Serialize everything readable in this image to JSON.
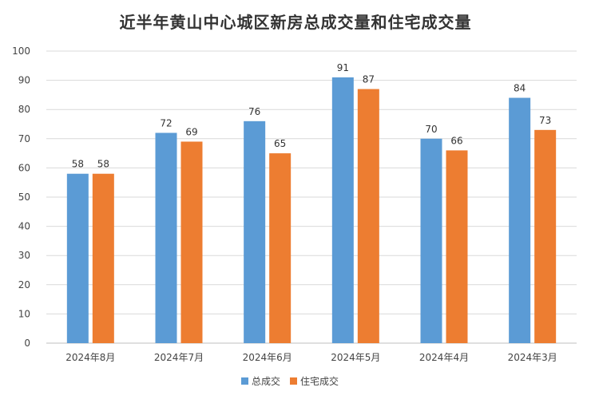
{
  "chart_data": {
    "type": "bar",
    "title": "近半年黄山中心城区新房总成交量和住宅成交量",
    "categories": [
      "2024年8月",
      "2024年7月",
      "2024年6月",
      "2024年5月",
      "2024年4月",
      "2024年3月"
    ],
    "series": [
      {
        "name": "总成交",
        "color": "#5b9bd5",
        "values": [
          58,
          72,
          76,
          91,
          70,
          84
        ]
      },
      {
        "name": "住宅成交",
        "color": "#ed7d31",
        "values": [
          58,
          69,
          65,
          87,
          66,
          73
        ]
      }
    ],
    "ylim": [
      0,
      100
    ],
    "yticks": [
      0,
      10,
      20,
      30,
      40,
      50,
      60,
      70,
      80,
      90,
      100
    ],
    "grid": true,
    "legend_position": "bottom"
  }
}
